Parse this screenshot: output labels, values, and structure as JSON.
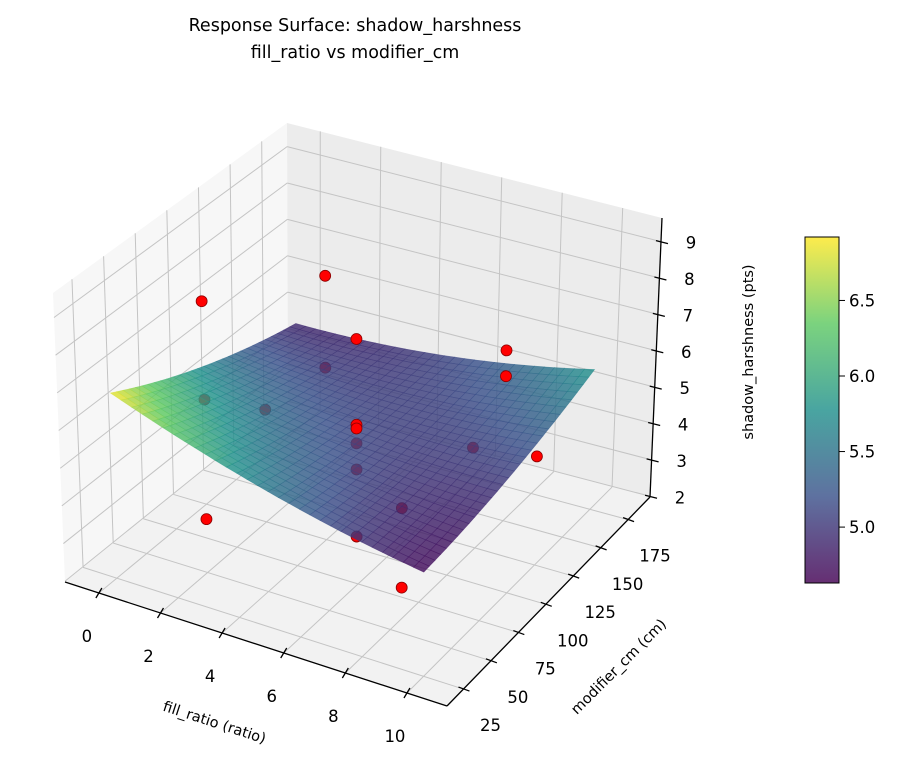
{
  "chart_data": {
    "type": "surface3d",
    "title": [
      "Response Surface: shadow_harshness",
      "fill_ratio vs modifier_cm"
    ],
    "xlabel": "fill_ratio (ratio)",
    "ylabel": "modifier_cm (cm)",
    "zlabel": "shadow_harshness (pts)",
    "xlim": [
      -1.1,
      11.3
    ],
    "ylim": [
      10,
      195
    ],
    "zlim": [
      1.98,
      9.65
    ],
    "x_ticks": [
      "0",
      "2",
      "4",
      "6",
      "8",
      "10"
    ],
    "y_ticks": [
      "25",
      "50",
      "75",
      "100",
      "125",
      "150",
      "175"
    ],
    "z_ticks": [
      "2",
      "3",
      "4",
      "5",
      "6",
      "7",
      "8",
      "9"
    ],
    "grid": true,
    "surface": {
      "x_range": [
        0,
        10
      ],
      "y_range": [
        25,
        175
      ],
      "corner_values": {
        "x0_y25": 6.9,
        "x0_y175": 4.9,
        "x10_y175": 5.8,
        "x10_y25": 4.7
      },
      "colormap": "viridis",
      "alpha": 0.8
    },
    "points": {
      "color": "#ff0000",
      "edge_color": "#8b0000",
      "data": [
        [
          2,
          150,
          7.3
        ],
        [
          2,
          50,
          9.2
        ],
        [
          5,
          100,
          7.6
        ],
        [
          2,
          150,
          4.8
        ],
        [
          8,
          150,
          6.6
        ],
        [
          8,
          150,
          5.9
        ],
        [
          0,
          100,
          4.8
        ],
        [
          2,
          100,
          5.0
        ],
        [
          6,
          175,
          2.8
        ],
        [
          10,
          125,
          4.9
        ],
        [
          2,
          50,
          3.4
        ],
        [
          5,
          100,
          2.3
        ],
        [
          8,
          60,
          4.9
        ],
        [
          8,
          60,
          2.8
        ],
        [
          5,
          100,
          5.3
        ],
        [
          5,
          100,
          5.2
        ],
        [
          5,
          100,
          4.8
        ],
        [
          5,
          100,
          4.1
        ]
      ]
    },
    "colorbar": {
      "range": [
        4.63,
        6.92
      ],
      "ticks": [
        "5.0",
        "5.5",
        "6.0",
        "6.5"
      ],
      "colormap": "viridis"
    }
  }
}
